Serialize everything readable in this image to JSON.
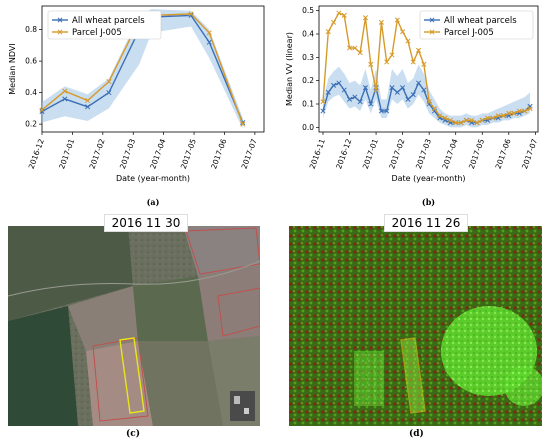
{
  "chart_data": [
    {
      "type": "line",
      "caption": "(a)",
      "xlabel": "Date (year-month)",
      "ylabel": "Median NDVI",
      "x_ticks": [
        "2016-12",
        "2017-01",
        "2017-02",
        "2017-03",
        "2017-04",
        "2017-05",
        "2017-06",
        "2017-07"
      ],
      "y_ticks": [
        "0.2",
        "0.4",
        "0.6",
        "0.8"
      ],
      "ylim": [
        0.15,
        0.95
      ],
      "xlim": [
        0,
        7.3
      ],
      "x": [
        0,
        0.75,
        1.5,
        2.2,
        3.2,
        3.6,
        4.9,
        5.5,
        6.6
      ],
      "series": [
        {
          "name": "All wheat parcels",
          "color": "#3b6fb6",
          "marker": "x",
          "values": [
            0.28,
            0.36,
            0.31,
            0.4,
            0.8,
            0.88,
            0.89,
            0.72,
            0.21
          ],
          "band_low": [
            0.21,
            0.25,
            0.22,
            0.3,
            0.58,
            0.78,
            0.82,
            0.62,
            0.17
          ],
          "band_high": [
            0.34,
            0.44,
            0.39,
            0.49,
            0.89,
            0.93,
            0.92,
            0.8,
            0.24
          ]
        },
        {
          "name": "Parcel J-005",
          "color": "#d69a2a",
          "marker": "x",
          "values": [
            0.29,
            0.41,
            0.35,
            0.47,
            0.86,
            0.89,
            0.9,
            0.78,
            0.2
          ]
        }
      ]
    },
    {
      "type": "line",
      "caption": "(b)",
      "xlabel": "Date (year-month)",
      "ylabel": "Median VV (linear)",
      "x_ticks": [
        "2016-11",
        "2016-12",
        "2017-01",
        "2017-02",
        "2017-03",
        "2017-04",
        "2017-05",
        "2017-06",
        "2017-07"
      ],
      "y_ticks": [
        "0.0",
        "0.1",
        "0.2",
        "0.3",
        "0.4",
        "0.5"
      ],
      "ylim": [
        -0.02,
        0.52
      ],
      "xlim": [
        -0.15,
        8.1
      ],
      "x": [
        0,
        0.2,
        0.4,
        0.6,
        0.8,
        1.0,
        1.2,
        1.4,
        1.6,
        1.8,
        2.0,
        2.2,
        2.4,
        2.6,
        2.8,
        3.0,
        3.2,
        3.4,
        3.6,
        3.8,
        4.0,
        4.2,
        4.4,
        4.6,
        4.8,
        5.0,
        5.2,
        5.4,
        5.6,
        5.8,
        6.0,
        6.2,
        6.4,
        6.6,
        6.8,
        7.0,
        7.2,
        7.4,
        7.6,
        7.8
      ],
      "series": [
        {
          "name": "All wheat parcels",
          "color": "#3b6fb6",
          "marker": "x",
          "values": [
            0.07,
            0.15,
            0.18,
            0.19,
            0.16,
            0.12,
            0.13,
            0.11,
            0.17,
            0.1,
            0.17,
            0.07,
            0.07,
            0.17,
            0.15,
            0.17,
            0.12,
            0.14,
            0.19,
            0.16,
            0.1,
            0.07,
            0.04,
            0.03,
            0.02,
            0.02,
            0.02,
            0.03,
            0.02,
            0.02,
            0.03,
            0.03,
            0.04,
            0.04,
            0.05,
            0.05,
            0.06,
            0.06,
            0.07,
            0.09
          ],
          "band_low": [
            0.04,
            0.11,
            0.13,
            0.14,
            0.11,
            0.08,
            0.09,
            0.07,
            0.12,
            0.06,
            0.12,
            0.04,
            0.04,
            0.12,
            0.1,
            0.12,
            0.08,
            0.1,
            0.14,
            0.11,
            0.06,
            0.04,
            0.02,
            0.01,
            0.0,
            0.0,
            0.0,
            0.01,
            0.0,
            0.0,
            0.01,
            0.01,
            0.02,
            0.02,
            0.03,
            0.03,
            0.04,
            0.04,
            0.05,
            0.06
          ],
          "band_high": [
            0.11,
            0.21,
            0.24,
            0.26,
            0.23,
            0.19,
            0.2,
            0.18,
            0.25,
            0.16,
            0.25,
            0.12,
            0.12,
            0.25,
            0.22,
            0.25,
            0.19,
            0.21,
            0.27,
            0.23,
            0.16,
            0.12,
            0.08,
            0.06,
            0.05,
            0.05,
            0.05,
            0.06,
            0.05,
            0.05,
            0.06,
            0.06,
            0.07,
            0.08,
            0.09,
            0.1,
            0.11,
            0.12,
            0.13,
            0.15
          ]
        },
        {
          "name": "Parcel J-005",
          "color": "#d69a2a",
          "marker": "x",
          "values": [
            0.11,
            0.41,
            0.45,
            0.49,
            0.48,
            0.34,
            0.34,
            0.32,
            0.47,
            0.27,
            0.16,
            0.45,
            0.28,
            0.31,
            0.46,
            0.41,
            0.37,
            0.28,
            0.33,
            0.27,
            0.11,
            0.08,
            0.05,
            0.04,
            0.03,
            0.02,
            0.02,
            0.03,
            0.03,
            0.02,
            0.03,
            0.04,
            0.04,
            0.05,
            0.05,
            0.06,
            0.06,
            0.07,
            0.07,
            0.08
          ]
        }
      ]
    }
  ],
  "images": [
    {
      "caption": "(c)",
      "title": "2016 11 30"
    },
    {
      "caption": "(d)",
      "title": "2016 11 26"
    }
  ]
}
